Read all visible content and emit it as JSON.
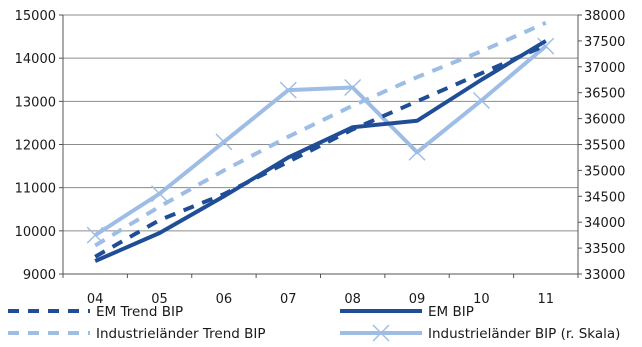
{
  "chart_data": {
    "type": "line",
    "categories": [
      "04",
      "05",
      "06",
      "07",
      "08",
      "09",
      "10",
      "11"
    ],
    "y_left": {
      "ticks": [
        "9000",
        "10000",
        "11000",
        "12000",
        "13000",
        "14000",
        "15000"
      ],
      "ylim": [
        9000,
        15000
      ]
    },
    "y_right": {
      "ticks": [
        "33000",
        "33500",
        "34000",
        "34500",
        "35000",
        "35500",
        "36000",
        "36500",
        "37000",
        "37500",
        "38000"
      ],
      "ylim": [
        33000,
        38000
      ]
    },
    "grid": "horizontal",
    "legend_position": "bottom",
    "series": [
      {
        "name": "EM Trend BIP",
        "axis": "left",
        "style": "dashed",
        "color": "#1f4e96",
        "values": [
          9400,
          10250,
          10850,
          11600,
          12350,
          13000,
          13650,
          14300
        ]
      },
      {
        "name": "EM BIP",
        "axis": "left",
        "style": "solid",
        "color": "#1f4e96",
        "values": [
          9300,
          9950,
          10800,
          11700,
          12400,
          12550,
          13500,
          14400
        ]
      },
      {
        "name": "Industrieländer Trend BIP",
        "axis": "right",
        "style": "dashed",
        "color": "#9dbde6",
        "values": [
          33550,
          34300,
          35000,
          35650,
          36250,
          36800,
          37300,
          37850
        ]
      },
      {
        "name": "Industrieländer BIP (r. Skala)",
        "axis": "right",
        "style": "solid-marker",
        "color": "#9dbde6",
        "values": [
          33750,
          34550,
          35550,
          36550,
          36600,
          35350,
          36350,
          37400
        ]
      }
    ]
  }
}
